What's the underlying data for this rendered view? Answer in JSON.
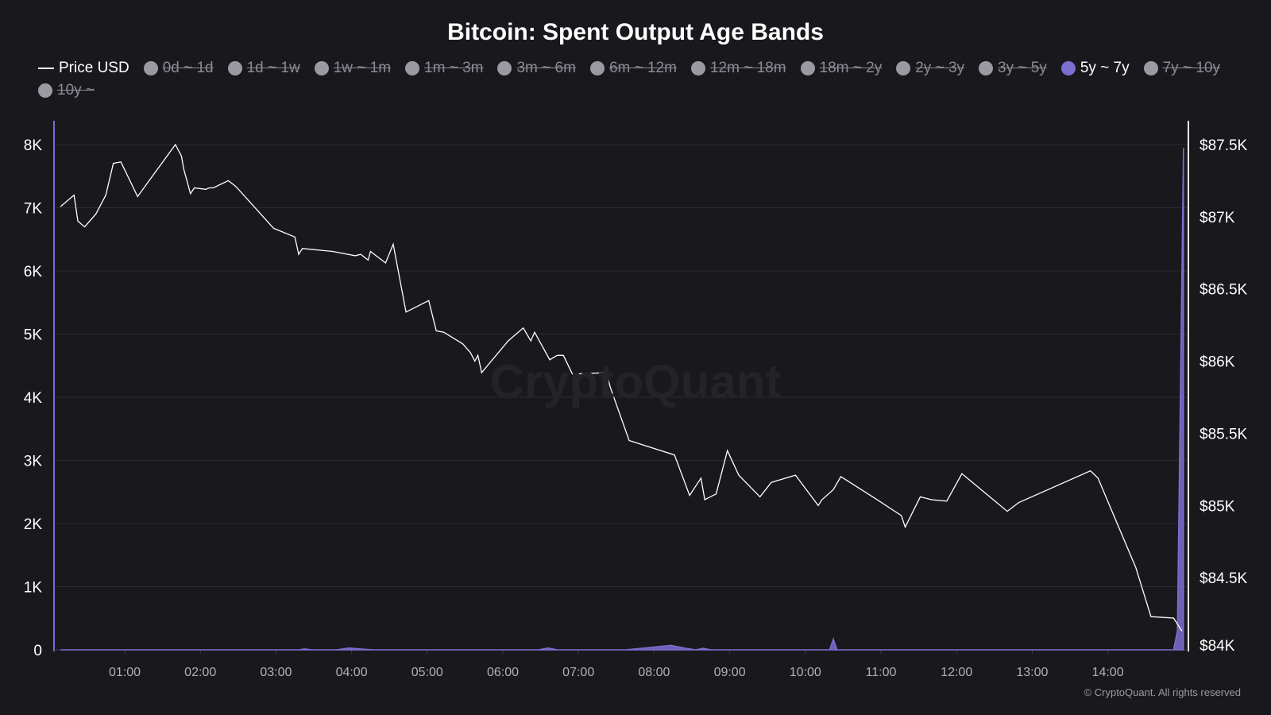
{
  "colors": {
    "background": "#19191d",
    "price_line": "#ffffff",
    "band_active": "#7b6fd0",
    "band_inactive": "#9a9aa2",
    "grid": "#2a2a30",
    "axis_text": "#ffffff",
    "time_text": "#b0b0b8"
  },
  "watermark": "CryptoQuant",
  "copyright": "© CryptoQuant. All rights reserved",
  "chart_data": {
    "type": "line",
    "title": "Bitcoin: Spent Output Age Bands",
    "legend": [
      {
        "label": "Price USD",
        "kind": "line",
        "active": true
      },
      {
        "label": "0d ~ 1d",
        "kind": "dot",
        "active": false
      },
      {
        "label": "1d ~ 1w",
        "kind": "dot",
        "active": false
      },
      {
        "label": "1w ~ 1m",
        "kind": "dot",
        "active": false
      },
      {
        "label": "1m ~ 3m",
        "kind": "dot",
        "active": false
      },
      {
        "label": "3m ~ 6m",
        "kind": "dot",
        "active": false
      },
      {
        "label": "6m ~ 12m",
        "kind": "dot",
        "active": false
      },
      {
        "label": "12m ~ 18m",
        "kind": "dot",
        "active": false
      },
      {
        "label": "18m ~ 2y",
        "kind": "dot",
        "active": false
      },
      {
        "label": "2y ~ 3y",
        "kind": "dot",
        "active": false
      },
      {
        "label": "3y ~ 5y",
        "kind": "dot",
        "active": false
      },
      {
        "label": "5y ~ 7y",
        "kind": "dot",
        "active": true
      },
      {
        "label": "7y ~ 10y",
        "kind": "dot",
        "active": false
      },
      {
        "label": "10y ~",
        "kind": "dot",
        "active": false
      }
    ],
    "legend_placement": "top",
    "grid": true,
    "x_range_hours": [
      0.15,
      15.0
    ],
    "x_tick_labels": [
      "01:00",
      "02:00",
      "03:00",
      "04:00",
      "05:00",
      "06:00",
      "07:00",
      "08:00",
      "09:00",
      "10:00",
      "11:00",
      "12:00",
      "13:00",
      "14:00"
    ],
    "y_left": {
      "range": [
        0,
        8000
      ],
      "tick_labels": [
        "0",
        "1K",
        "2K",
        "3K",
        "4K",
        "5K",
        "6K",
        "7K",
        "8K"
      ]
    },
    "y_right": {
      "range": [
        84000,
        87500
      ],
      "tick_labels": [
        "$84K",
        "$84.5K",
        "$85K",
        "$85.5K",
        "$86K",
        "$86.5K",
        "$87K",
        "$87.5K"
      ]
    },
    "series": [
      {
        "name": "Price USD",
        "axis": "right",
        "style": "line",
        "points": [
          [
            0.15,
            87070
          ],
          [
            0.33,
            87150
          ],
          [
            0.38,
            86970
          ],
          [
            0.47,
            86930
          ],
          [
            0.62,
            87020
          ],
          [
            0.75,
            87150
          ],
          [
            0.85,
            87370
          ],
          [
            0.95,
            87380
          ],
          [
            1.17,
            87140
          ],
          [
            1.67,
            87500
          ],
          [
            1.75,
            87420
          ],
          [
            1.78,
            87330
          ],
          [
            1.87,
            87160
          ],
          [
            1.92,
            87200
          ],
          [
            2.07,
            87190
          ],
          [
            2.12,
            87200
          ],
          [
            2.17,
            87200
          ],
          [
            2.37,
            87250
          ],
          [
            2.47,
            87210
          ],
          [
            2.97,
            86920
          ],
          [
            3.25,
            86860
          ],
          [
            3.3,
            86740
          ],
          [
            3.35,
            86780
          ],
          [
            3.75,
            86760
          ],
          [
            4.05,
            86730
          ],
          [
            4.12,
            86740
          ],
          [
            4.22,
            86700
          ],
          [
            4.25,
            86760
          ],
          [
            4.45,
            86680
          ],
          [
            4.55,
            86810
          ],
          [
            4.72,
            86340
          ],
          [
            5.02,
            86420
          ],
          [
            5.12,
            86210
          ],
          [
            5.22,
            86200
          ],
          [
            5.47,
            86120
          ],
          [
            5.57,
            86060
          ],
          [
            5.63,
            86000
          ],
          [
            5.67,
            86040
          ],
          [
            5.72,
            85920
          ],
          [
            6.07,
            86140
          ],
          [
            6.27,
            86230
          ],
          [
            6.37,
            86140
          ],
          [
            6.42,
            86200
          ],
          [
            6.62,
            86010
          ],
          [
            6.72,
            86040
          ],
          [
            6.8,
            86040
          ],
          [
            6.92,
            85910
          ],
          [
            7.37,
            85920
          ],
          [
            7.42,
            85820
          ],
          [
            7.67,
            85450
          ],
          [
            8.27,
            85350
          ],
          [
            8.47,
            85070
          ],
          [
            8.62,
            85190
          ],
          [
            8.67,
            85040
          ],
          [
            8.82,
            85080
          ],
          [
            8.97,
            85380
          ],
          [
            9.12,
            85210
          ],
          [
            9.4,
            85060
          ],
          [
            9.55,
            85160
          ],
          [
            9.87,
            85210
          ],
          [
            10.17,
            85000
          ],
          [
            10.22,
            85040
          ],
          [
            10.37,
            85110
          ],
          [
            10.47,
            85200
          ],
          [
            10.92,
            85050
          ],
          [
            11.27,
            84930
          ],
          [
            11.32,
            84850
          ],
          [
            11.52,
            85060
          ],
          [
            11.67,
            85040
          ],
          [
            11.87,
            85030
          ],
          [
            12.07,
            85220
          ],
          [
            12.67,
            84960
          ],
          [
            12.82,
            85020
          ],
          [
            13.77,
            85240
          ],
          [
            13.87,
            85190
          ],
          [
            14.37,
            84570
          ],
          [
            14.57,
            84230
          ],
          [
            14.87,
            84220
          ],
          [
            14.98,
            84130
          ]
        ]
      },
      {
        "name": "5y ~ 7y",
        "axis": "left",
        "style": "area",
        "points": [
          [
            0.15,
            0
          ],
          [
            3.3,
            0
          ],
          [
            3.38,
            15
          ],
          [
            3.47,
            0
          ],
          [
            3.8,
            0
          ],
          [
            3.97,
            30
          ],
          [
            4.17,
            10
          ],
          [
            4.3,
            0
          ],
          [
            6.47,
            0
          ],
          [
            6.6,
            30
          ],
          [
            6.72,
            0
          ],
          [
            7.62,
            0
          ],
          [
            8.22,
            70
          ],
          [
            8.47,
            15
          ],
          [
            8.55,
            0
          ],
          [
            8.65,
            25
          ],
          [
            8.75,
            0
          ],
          [
            10.32,
            0
          ],
          [
            10.37,
            170
          ],
          [
            10.42,
            0
          ],
          [
            14.87,
            0
          ],
          [
            14.92,
            300
          ],
          [
            15.0,
            7950
          ]
        ]
      }
    ]
  }
}
